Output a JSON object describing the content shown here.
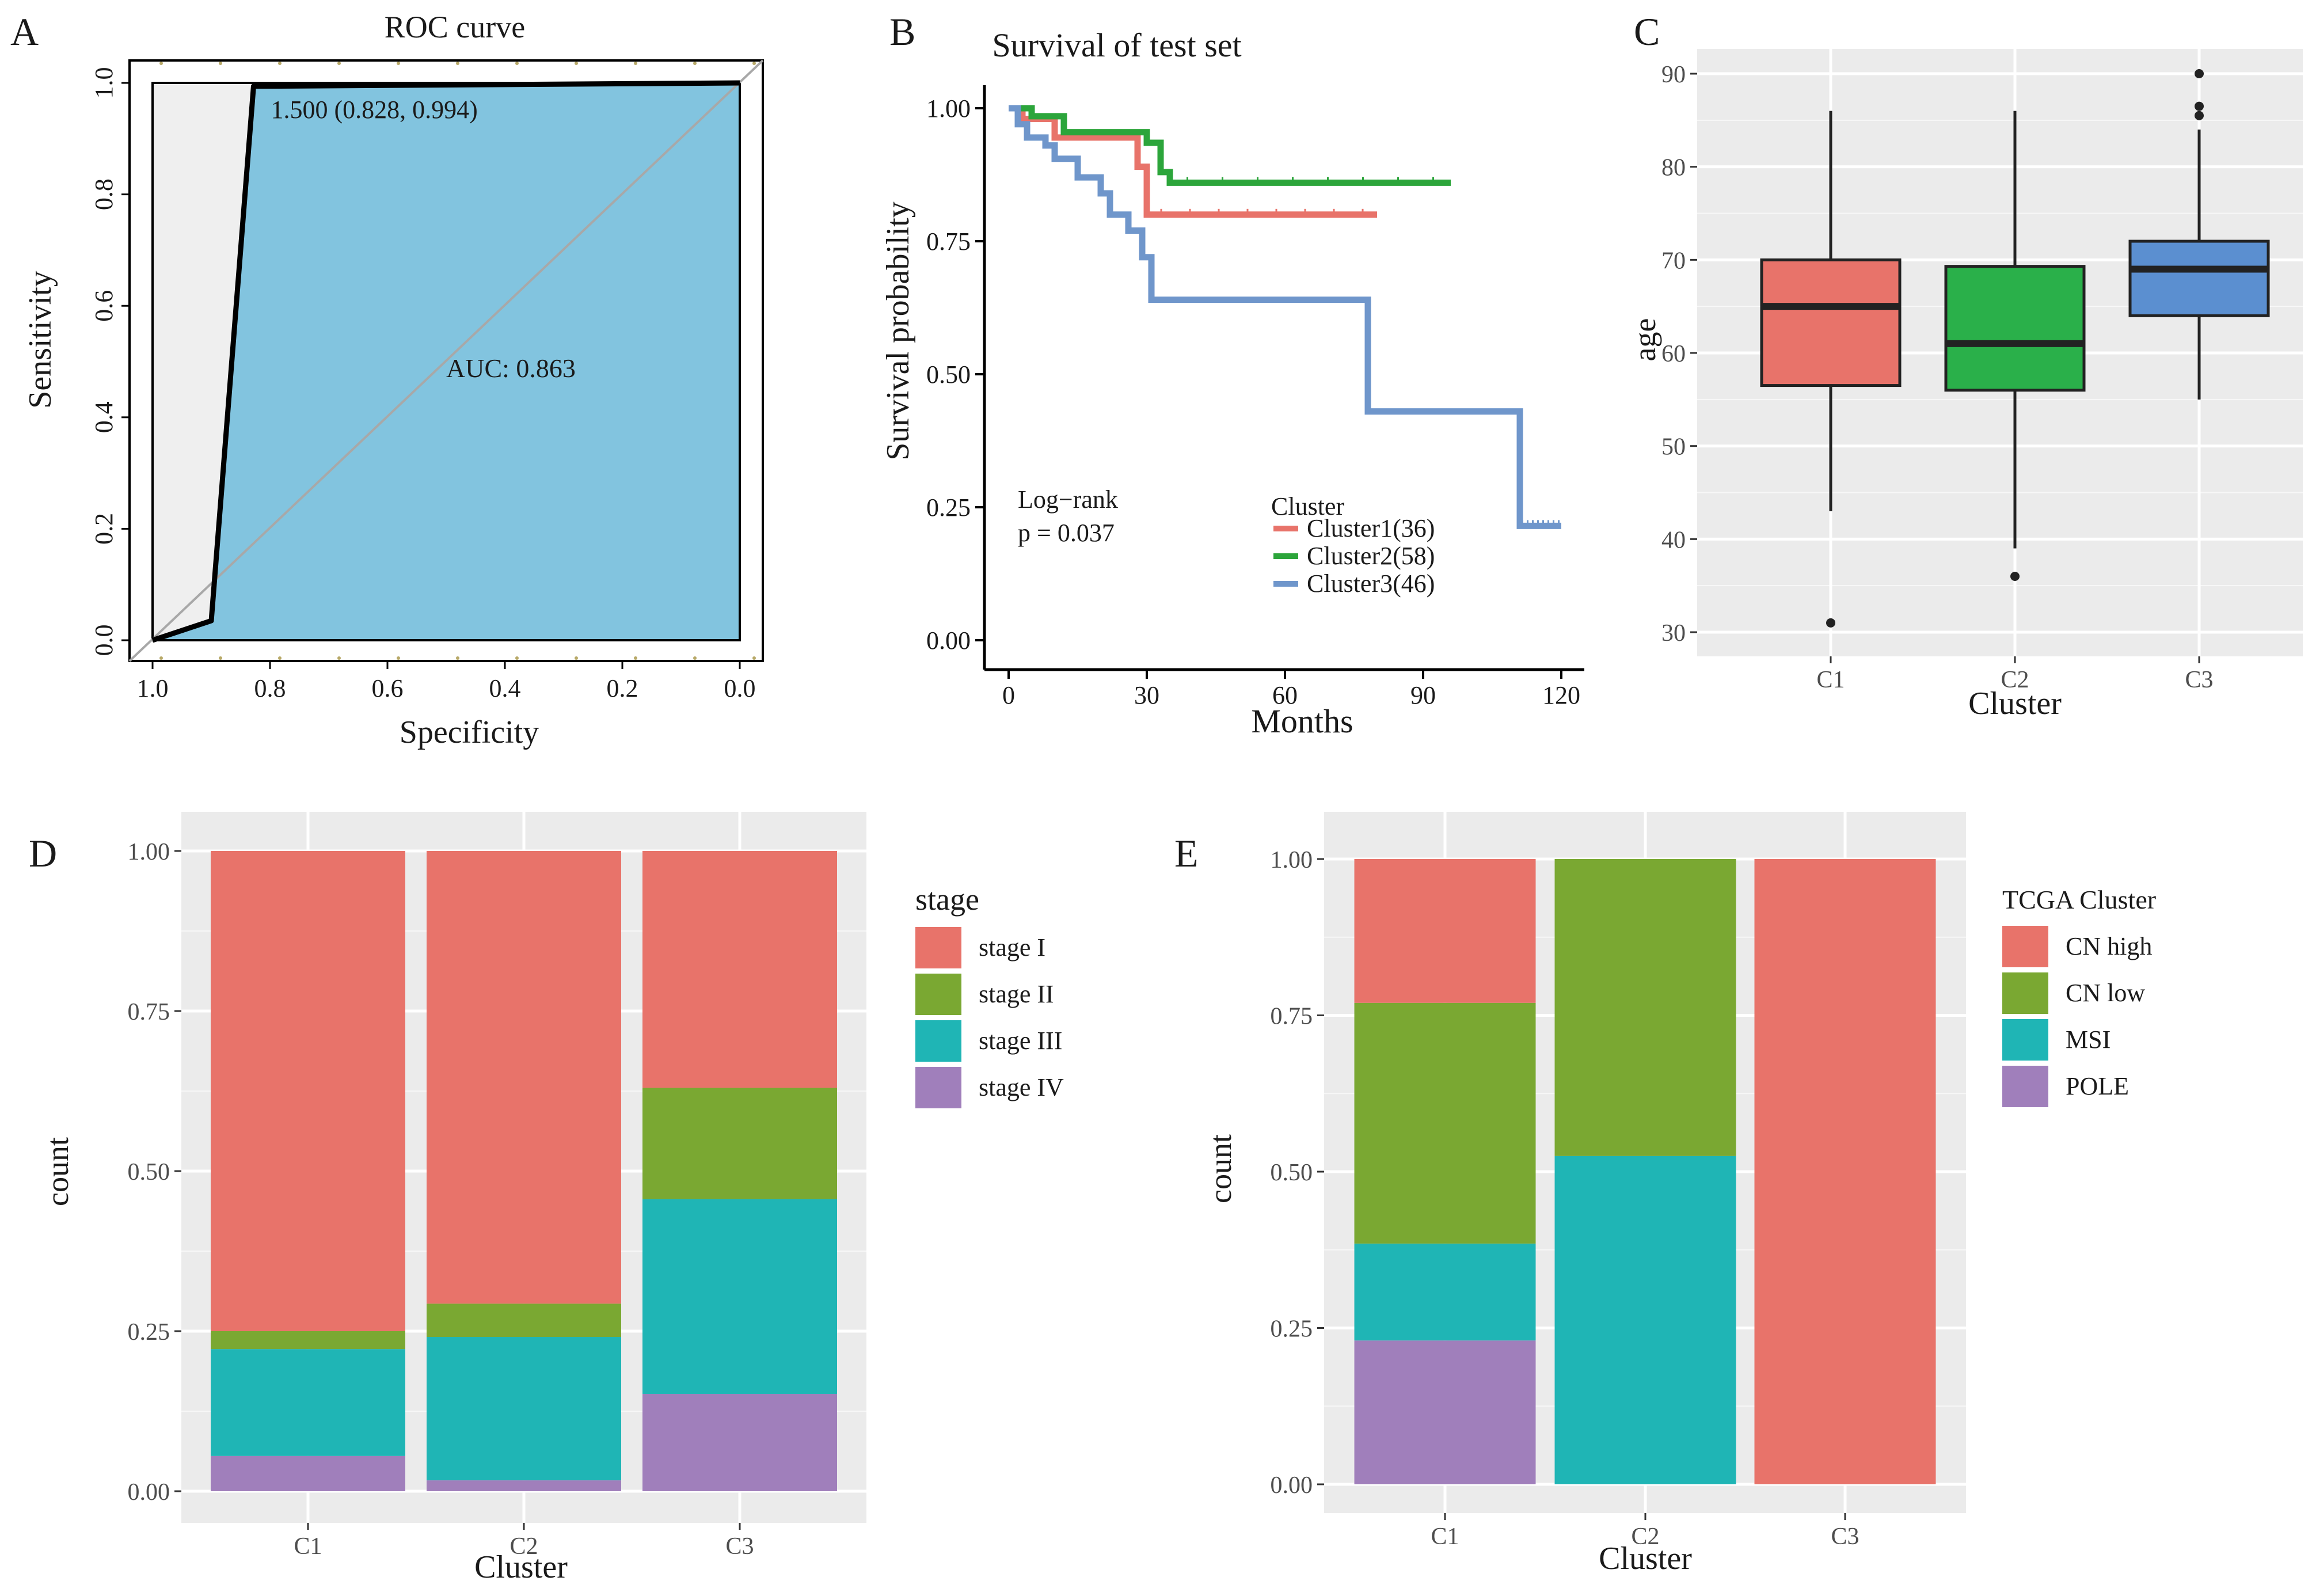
{
  "panel_labels": {
    "A": "A",
    "B": "B",
    "C": "C",
    "D": "D",
    "E": "E"
  },
  "colors": {
    "red": "#e8736a",
    "green": "#7aa832",
    "teal": "#1fb5b5",
    "purple": "#a07fbb",
    "roc_fill": "#82c4df",
    "km_red": "#e8736a",
    "km_green": "#2ca53b",
    "km_blue": "#6f96cb",
    "box_red": "#e8736a",
    "box_green": "#2ab04a",
    "box_blue": "#5b8fd0"
  },
  "chart_data": [
    {
      "id": "A",
      "type": "line",
      "title": "ROC curve",
      "xlabel": "Specificity",
      "ylabel": "Sensitivity",
      "xlim": [
        1.0,
        0.0
      ],
      "ylim": [
        0.0,
        1.0
      ],
      "x_ticks": [
        "1.0",
        "0.8",
        "0.6",
        "0.4",
        "0.2",
        "0.0"
      ],
      "y_ticks": [
        "0.0",
        "0.2",
        "0.4",
        "0.6",
        "0.8",
        "1.0"
      ],
      "curve": [
        [
          1.0,
          0.0
        ],
        [
          0.9,
          0.035
        ],
        [
          0.828,
          0.994
        ],
        [
          0.0,
          1.0
        ]
      ],
      "threshold_label": "1.500 (0.828, 0.994)",
      "auc_label": "AUC: 0.863"
    },
    {
      "id": "B",
      "type": "line",
      "title": "Survival of test set",
      "xlabel": "Months",
      "ylabel": "Survival probability",
      "xlim": [
        0,
        120
      ],
      "ylim": [
        0,
        1
      ],
      "x_ticks": [
        "0",
        "30",
        "60",
        "90",
        "120"
      ],
      "y_ticks": [
        "0.00",
        "0.25",
        "0.50",
        "0.75",
        "1.00"
      ],
      "pvalue_lines": [
        "Log−rank",
        "p = 0.037"
      ],
      "legend_title": "Cluster",
      "series": [
        {
          "name": "Cluster1(36)",
          "color": "#e8736a",
          "steps": [
            [
              0,
              1.0
            ],
            [
              3,
              0.98
            ],
            [
              10,
              0.945
            ],
            [
              28,
              0.89
            ],
            [
              30,
              0.8
            ],
            [
              80,
              0.8
            ]
          ]
        },
        {
          "name": "Cluster2(58)",
          "color": "#2ca53b",
          "steps": [
            [
              0,
              1.0
            ],
            [
              5,
              0.985
            ],
            [
              12,
              0.955
            ],
            [
              30,
              0.935
            ],
            [
              33,
              0.88
            ],
            [
              35,
              0.86
            ],
            [
              96,
              0.86
            ]
          ]
        },
        {
          "name": "Cluster3(46)",
          "color": "#6f96cb",
          "steps": [
            [
              0,
              1.0
            ],
            [
              2,
              0.97
            ],
            [
              4,
              0.945
            ],
            [
              8,
              0.93
            ],
            [
              10,
              0.905
            ],
            [
              15,
              0.87
            ],
            [
              20,
              0.84
            ],
            [
              22,
              0.8
            ],
            [
              26,
              0.77
            ],
            [
              29,
              0.72
            ],
            [
              31,
              0.64
            ],
            [
              78,
              0.64
            ],
            [
              78,
              0.43
            ],
            [
              111,
              0.43
            ],
            [
              111,
              0.215
            ],
            [
              120,
              0.215
            ]
          ]
        }
      ]
    },
    {
      "id": "C",
      "type": "box",
      "xlabel": "Cluster",
      "ylabel": "age",
      "ylim": [
        28,
        92
      ],
      "y_ticks": [
        "30",
        "40",
        "50",
        "60",
        "70",
        "80",
        "90"
      ],
      "categories": [
        "C1",
        "C2",
        "C3"
      ],
      "boxes": [
        {
          "name": "C1",
          "color": "#e8736a",
          "min": 43,
          "q1": 56.5,
          "median": 65,
          "q3": 70,
          "max": 86,
          "outliers": [
            31
          ]
        },
        {
          "name": "C2",
          "color": "#2ab04a",
          "min": 39,
          "q1": 56,
          "median": 61,
          "q3": 69.3,
          "max": 86,
          "outliers": [
            36
          ]
        },
        {
          "name": "C3",
          "color": "#5b8fd0",
          "min": 55,
          "q1": 64,
          "median": 69,
          "q3": 72,
          "max": 84,
          "outliers": [
            85.5,
            86.5,
            90
          ]
        }
      ]
    },
    {
      "id": "D",
      "type": "bar",
      "stacked": true,
      "xlabel": "Cluster",
      "ylabel": "count",
      "ylim": [
        0,
        1
      ],
      "y_ticks": [
        "0.00",
        "0.25",
        "0.50",
        "0.75",
        "1.00"
      ],
      "categories": [
        "C1",
        "C2",
        "C3"
      ],
      "legend_title": "stage",
      "series": [
        {
          "name": "stage IV",
          "color": "#a07fbb",
          "values": [
            0.055,
            0.017,
            0.152
          ]
        },
        {
          "name": "stage III",
          "color": "#1fb5b5",
          "values": [
            0.167,
            0.224,
            0.304
          ]
        },
        {
          "name": "stage II",
          "color": "#7aa832",
          "values": [
            0.028,
            0.052,
            0.174
          ]
        },
        {
          "name": "stage I",
          "color": "#e8736a",
          "values": [
            0.75,
            0.707,
            0.37
          ]
        }
      ],
      "legend_order": [
        "stage I",
        "stage II",
        "stage III",
        "stage IV"
      ]
    },
    {
      "id": "E",
      "type": "bar",
      "stacked": true,
      "xlabel": "Cluster",
      "ylabel": "count",
      "ylim": [
        0,
        1
      ],
      "y_ticks": [
        "0.00",
        "0.25",
        "0.50",
        "0.75",
        "1.00"
      ],
      "categories": [
        "C1",
        "C2",
        "C3"
      ],
      "legend_title": "TCGA Cluster",
      "series": [
        {
          "name": "POLE",
          "color": "#a07fbb",
          "values": [
            0.23,
            0,
            0
          ]
        },
        {
          "name": "MSI",
          "color": "#1fb5b5",
          "values": [
            0.155,
            0.525,
            0
          ]
        },
        {
          "name": "CN low",
          "color": "#7aa832",
          "values": [
            0.385,
            0.475,
            0
          ]
        },
        {
          "name": "CN high",
          "color": "#e8736a",
          "values": [
            0.23,
            0,
            1.0
          ]
        }
      ],
      "legend_order": [
        "CN high",
        "CN low",
        "MSI",
        "POLE"
      ]
    }
  ]
}
